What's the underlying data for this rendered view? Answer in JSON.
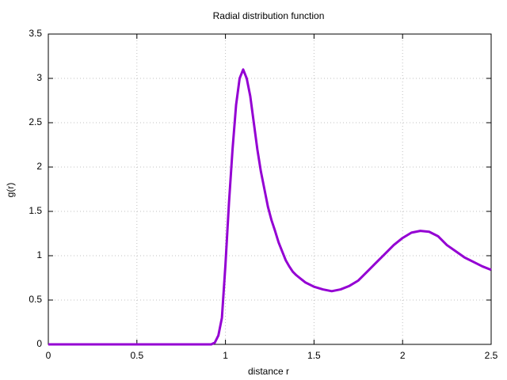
{
  "chart_data": {
    "type": "line",
    "title": "Radial distribution function",
    "x_label": "distance r",
    "y_label": "g(r)",
    "x": [
      0,
      0.5,
      0.9,
      0.92,
      0.94,
      0.96,
      0.98,
      1.0,
      1.02,
      1.04,
      1.06,
      1.08,
      1.1,
      1.12,
      1.14,
      1.16,
      1.18,
      1.2,
      1.22,
      1.24,
      1.26,
      1.28,
      1.3,
      1.32,
      1.34,
      1.36,
      1.38,
      1.4,
      1.45,
      1.5,
      1.55,
      1.6,
      1.65,
      1.7,
      1.75,
      1.8,
      1.85,
      1.9,
      1.95,
      2.0,
      2.05,
      2.1,
      2.15,
      2.2,
      2.25,
      2.3,
      2.35,
      2.4,
      2.45,
      2.5
    ],
    "series": [
      {
        "name": "g(r)",
        "color": "#9400d3",
        "values": [
          0,
          0,
          0,
          0,
          0.02,
          0.1,
          0.3,
          0.9,
          1.6,
          2.2,
          2.7,
          3.0,
          3.1,
          3.0,
          2.8,
          2.5,
          2.2,
          1.95,
          1.75,
          1.55,
          1.4,
          1.28,
          1.15,
          1.05,
          0.95,
          0.88,
          0.82,
          0.78,
          0.7,
          0.65,
          0.62,
          0.6,
          0.62,
          0.66,
          0.72,
          0.82,
          0.92,
          1.02,
          1.12,
          1.2,
          1.26,
          1.28,
          1.27,
          1.22,
          1.12,
          1.05,
          0.98,
          0.93,
          0.88,
          0.84
        ]
      }
    ],
    "xlim": [
      0,
      2.5
    ],
    "ylim": [
      0,
      3.5
    ],
    "xticks": [
      0,
      0.5,
      1,
      1.5,
      2,
      2.5
    ],
    "yticks": [
      0,
      0.5,
      1,
      1.5,
      2,
      2.5,
      3,
      3.5
    ],
    "grid": true
  }
}
